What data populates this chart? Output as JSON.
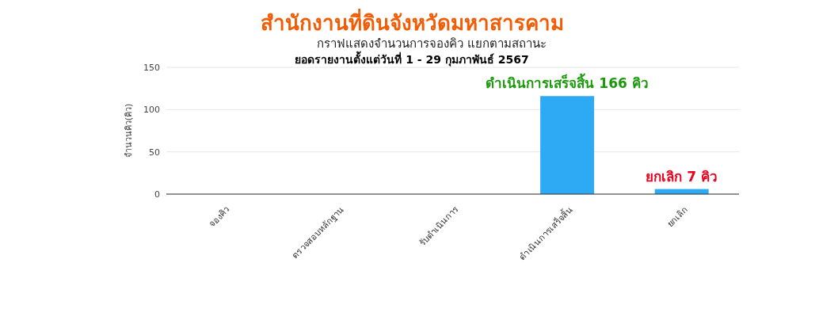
{
  "chart_data": {
    "type": "bar",
    "title": "สำนักงานที่ดินจังหวัดมหาสารคาม",
    "subtitle": "กราฟแสดงจำนวนการจองคิว แยกตามสถานะ",
    "ylabel": "จำนวนคิว(คิว)",
    "categories": [
      "จองคิว",
      "ตรวจสอบหลักฐาน",
      "รับดำเนินการ",
      "ดำเนินการเสร็จสิ้น",
      "ยกเลิก"
    ],
    "values": [
      0,
      0,
      0,
      116,
      6
    ],
    "color": "#2eaaf5",
    "ylim": [
      0,
      150
    ],
    "yticks": [
      0,
      50,
      100,
      150
    ],
    "grid": "y",
    "annotations": [
      "ยอดรายงานตั้งแต่วันที่ 1 - 29 กุมภาพันธ์ 2567",
      {
        "text": "ดำเนินการเสร็จสิ้น 166 คิว",
        "x": "ดำเนินการเสร็จสิ้น",
        "y": 116
      },
      {
        "text": "ยกเลิก 7 คิว",
        "x": "ยกเลิก",
        "y": 6
      }
    ]
  }
}
